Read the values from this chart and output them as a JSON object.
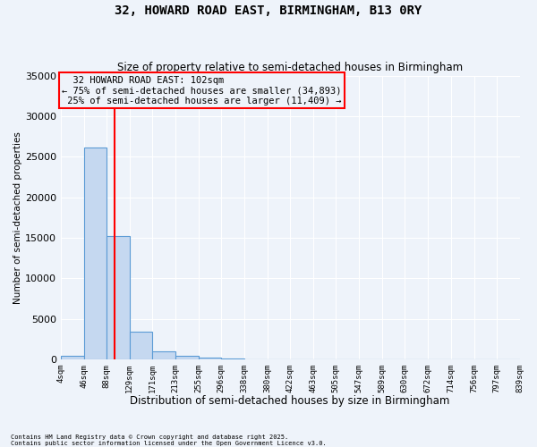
{
  "title": "32, HOWARD ROAD EAST, BIRMINGHAM, B13 0RY",
  "subtitle": "Size of property relative to semi-detached houses in Birmingham",
  "xlabel": "Distribution of semi-detached houses by size in Birmingham",
  "ylabel": "Number of semi-detached properties",
  "bin_edges": [
    4,
    46,
    88,
    129,
    171,
    213,
    255,
    296,
    338,
    380,
    422,
    463,
    505,
    547,
    589,
    630,
    672,
    714,
    756,
    797,
    839
  ],
  "bar_heights": [
    500,
    26100,
    15200,
    3400,
    1000,
    500,
    200,
    100,
    30,
    10,
    5,
    2,
    1,
    1,
    0,
    0,
    0,
    0,
    0,
    0
  ],
  "bar_color": "#c5d8f0",
  "bar_edge_color": "#5b9bd5",
  "property_size": 102,
  "property_label": "32 HOWARD ROAD EAST: 102sqm",
  "pct_smaller": 75,
  "n_smaller": 34893,
  "pct_larger": 25,
  "n_larger": 11409,
  "vline_color": "red",
  "annotation_box_color": "red",
  "ylim": [
    0,
    35000
  ],
  "yticks": [
    0,
    5000,
    10000,
    15000,
    20000,
    25000,
    30000,
    35000
  ],
  "background_color": "#eef3fa",
  "grid_color": "white",
  "footnote1": "Contains HM Land Registry data © Crown copyright and database right 2025.",
  "footnote2": "Contains public sector information licensed under the Open Government Licence v3.0."
}
